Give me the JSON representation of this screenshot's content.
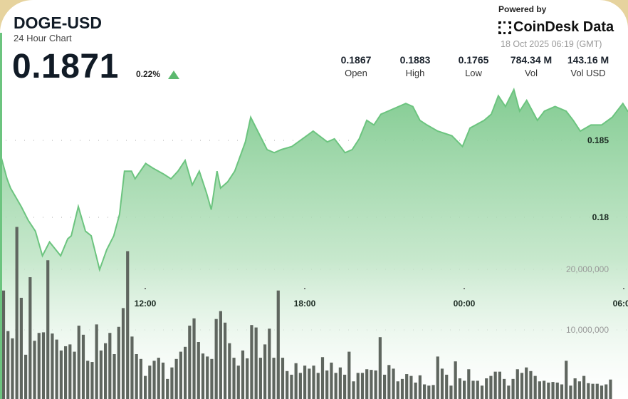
{
  "header": {
    "symbol": "DOGE-USD",
    "subtitle": "24 Hour Chart",
    "price": "0.1871",
    "change": "0.22%",
    "change_direction": "up",
    "powered_by": "Powered by",
    "brand": "CoinDesk Data",
    "timestamp": "18 Oct 2025 06:19 (GMT)"
  },
  "stats": [
    {
      "value": "0.1867",
      "label": "Open"
    },
    {
      "value": "0.1883",
      "label": "High"
    },
    {
      "value": "0.1765",
      "label": "Low"
    },
    {
      "value": "784.34 M",
      "label": "Vol"
    },
    {
      "value": "143.16 M",
      "label": "Vol USD"
    }
  ],
  "colors": {
    "line": "#6cc47f",
    "fill": "#8fd19d",
    "bars": "#5f665f",
    "up": "#5cb96f",
    "frame": "#e6d39e"
  },
  "chart_data": {
    "type": "line",
    "grid": true,
    "price_axis": {
      "ticks": [
        0.185,
        0.18
      ],
      "tick_labels": [
        "0.185",
        "0.18"
      ]
    },
    "volume_axis": {
      "ticks": [
        20000000,
        10000000
      ],
      "tick_labels": [
        "20,000,000",
        "10,000,000"
      ]
    },
    "x_axis": {
      "tick_labels": [
        "12:00",
        "18:00",
        "00:00",
        "06:00"
      ]
    },
    "price": [
      [
        "06:32",
        0.1842
      ],
      [
        "06:48",
        0.1825
      ],
      [
        "06:56",
        0.1819
      ],
      [
        "07:20",
        0.1807
      ],
      [
        "07:36",
        0.1798
      ],
      [
        "07:52",
        0.1791
      ],
      [
        "08:08",
        0.1775
      ],
      [
        "08:24",
        0.1784
      ],
      [
        "08:49",
        0.1775
      ],
      [
        "09:05",
        0.1786
      ],
      [
        "09:13",
        0.1788
      ],
      [
        "09:29",
        0.1807
      ],
      [
        "09:45",
        0.1791
      ],
      [
        "09:58",
        0.1788
      ],
      [
        "10:17",
        0.1766
      ],
      [
        "10:33",
        0.1779
      ],
      [
        "10:49",
        0.1788
      ],
      [
        "11:02",
        0.1802
      ],
      [
        "11:13",
        0.183
      ],
      [
        "11:29",
        0.183
      ],
      [
        "11:37",
        0.1825
      ],
      [
        "12:01",
        0.1835
      ],
      [
        "12:17",
        0.1832
      ],
      [
        "12:42",
        0.1828
      ],
      [
        "12:58",
        0.1825
      ],
      [
        "13:14",
        0.183
      ],
      [
        "13:30",
        0.1837
      ],
      [
        "13:46",
        0.1821
      ],
      [
        "14:02",
        0.183
      ],
      [
        "14:18",
        0.1816
      ],
      [
        "14:29",
        0.1805
      ],
      [
        "14:42",
        0.183
      ],
      [
        "14:50",
        0.1819
      ],
      [
        "15:06",
        0.1823
      ],
      [
        "15:22",
        0.183
      ],
      [
        "15:46",
        0.1849
      ],
      [
        "15:58",
        0.1865
      ],
      [
        "16:19",
        0.1853
      ],
      [
        "16:35",
        0.1844
      ],
      [
        "16:51",
        0.1842
      ],
      [
        "17:07",
        0.1844
      ],
      [
        "17:31",
        0.1846
      ],
      [
        "17:55",
        0.1851
      ],
      [
        "18:19",
        0.1856
      ],
      [
        "18:51",
        0.1849
      ],
      [
        "19:07",
        0.1851
      ],
      [
        "19:31",
        0.1842
      ],
      [
        "19:47",
        0.1844
      ],
      [
        "20:03",
        0.1851
      ],
      [
        "20:20",
        0.1863
      ],
      [
        "20:36",
        0.186
      ],
      [
        "20:52",
        0.1867
      ],
      [
        "21:08",
        0.1869
      ],
      [
        "21:32",
        0.1872
      ],
      [
        "21:48",
        0.1874
      ],
      [
        "22:04",
        0.1872
      ],
      [
        "22:20",
        0.1863
      ],
      [
        "22:36",
        0.186
      ],
      [
        "23:00",
        0.1856
      ],
      [
        "23:32",
        0.1853
      ],
      [
        "23:56",
        0.1846
      ],
      [
        "00:13",
        0.1858
      ],
      [
        "00:45",
        0.1863
      ],
      [
        "01:01",
        0.1867
      ],
      [
        "01:17",
        0.1879
      ],
      [
        "01:33",
        0.1872
      ],
      [
        "01:52",
        0.1883
      ],
      [
        "02:05",
        0.1869
      ],
      [
        "02:21",
        0.1876
      ],
      [
        "02:45",
        0.1863
      ],
      [
        "03:01",
        0.1869
      ],
      [
        "03:25",
        0.1872
      ],
      [
        "03:50",
        0.1869
      ],
      [
        "04:06",
        0.1863
      ],
      [
        "04:22",
        0.1856
      ],
      [
        "04:46",
        0.186
      ],
      [
        "05:10",
        0.186
      ],
      [
        "05:34",
        0.1865
      ],
      [
        "05:58",
        0.1874
      ],
      [
        "06:09",
        0.1869
      ]
    ],
    "volume": {
      "first_bar": "06:40",
      "interval_minutes": 10,
      "values_millions": [
        16.5,
        9.8,
        8.6,
        27,
        15.3,
        5.9,
        18.7,
        8.2,
        9.5,
        9.6,
        21.5,
        9.4,
        8.4,
        6.6,
        7.3,
        7.6,
        6.4,
        10.7,
        9.2,
        4.9,
        4.7,
        10.9,
        6.6,
        7.8,
        9.5,
        6,
        10.5,
        13.6,
        23,
        8.9,
        6,
        5.2,
        2.4,
        4.1,
        4.9,
        5.4,
        4.6,
        1.9,
        3.8,
        5.2,
        6.4,
        7.2,
        10.7,
        11.9,
        8,
        6.1,
        5.6,
        5.2,
        11.8,
        13.1,
        11.2,
        7.8,
        5.4,
        4.1,
        6.6,
        5.3,
        10.8,
        10.4,
        5.4,
        7.6,
        10.2,
        5.4,
        16.5,
        5.4,
        3.2,
        2.6,
        4.5,
        2.9,
        4.1,
        3.6,
        4.1,
        2.9,
        5.5,
        3.3,
        4.6,
        2.9,
        3.8,
        2.6,
        6.4,
        1.5,
        2.9,
        2.9,
        3.5,
        3.4,
        3.3,
        8.8,
        2.6,
        4.2,
        3.6,
        1.5,
        1.9,
        2.7,
        2.4,
        1.3,
        2.5,
        1.0,
        0.8,
        0.9,
        5.6,
        3.6,
        2.6,
        0.8,
        4.8,
        2.0,
        1.6,
        3.5,
        1.6,
        1.6,
        0.8,
        2.0,
        2.4,
        3.1,
        3.1,
        1.9,
        0.8,
        1.9,
        3.5,
        2.9,
        3.8,
        3.2,
        2.4,
        1.5,
        1.6,
        1.3,
        1.4,
        1.3,
        1.0,
        4.9,
        0.8,
        2.0,
        1.5,
        2.4,
        1.2,
        1.1,
        1.1,
        0.8,
        1.0,
        1.8
      ]
    }
  }
}
